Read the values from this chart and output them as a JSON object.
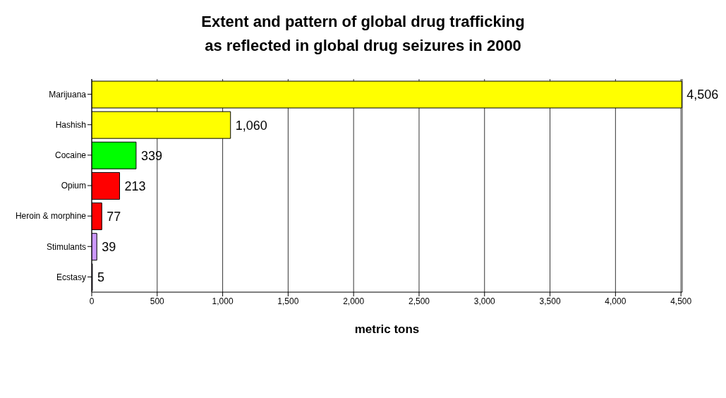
{
  "chart_data": {
    "type": "bar",
    "orientation": "horizontal",
    "title": "Extent and pattern of global drug trafficking\nas reflected in global drug seizures in 2000",
    "xlabel": "metric tons",
    "categories": [
      "Marijuana",
      "Hashish",
      "Cocaine",
      "Opium",
      "Heroin & morphine",
      "Stimulants",
      "Ecstasy"
    ],
    "values": [
      4506,
      1060,
      339,
      213,
      77,
      39,
      5
    ],
    "colors": [
      "#ffff00",
      "#ffff00",
      "#00ff00",
      "#ff0000",
      "#ff0000",
      "#cc99ff",
      "#cc99ff"
    ],
    "value_labels": [
      "4,506",
      "1,060",
      "339",
      "213",
      "77",
      "39",
      "5"
    ],
    "xlim": [
      0,
      4510
    ],
    "xticks": [
      0,
      500,
      {
        "value": 1000,
        "label": "1,000"
      },
      {
        "value": 1500,
        "label": "1,500"
      },
      {
        "value": 2000,
        "label": "2,000"
      },
      {
        "value": 2500,
        "label": "2,500"
      },
      {
        "value": 3000,
        "label": "3,000"
      },
      {
        "value": 3500,
        "label": "3,500"
      },
      {
        "value": 4000,
        "label": "4,000"
      },
      {
        "value": 4500,
        "label": "4,500"
      }
    ],
    "grid": "x",
    "legend": false
  }
}
